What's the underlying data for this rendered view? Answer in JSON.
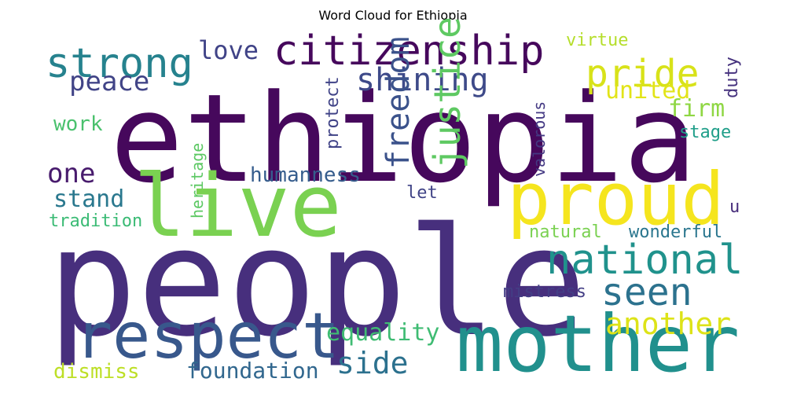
{
  "chart_data": {
    "type": "wordcloud",
    "title": "Word Cloud for Ethiopia",
    "words": [
      {
        "text": "ethiopia",
        "color": "#46085c"
      },
      {
        "text": "people",
        "color": "#472f7d"
      },
      {
        "text": "live",
        "color": "#7ad151"
      },
      {
        "text": "mother",
        "color": "#21908d"
      },
      {
        "text": "proud",
        "color": "#f5e51e"
      },
      {
        "text": "respect",
        "color": "#38588c"
      },
      {
        "text": "citizenship",
        "color": "#46085c"
      },
      {
        "text": "national",
        "color": "#20928c"
      },
      {
        "text": "strong",
        "color": "#26828e"
      },
      {
        "text": "pride",
        "color": "#d8e219"
      },
      {
        "text": "seen",
        "color": "#2c728e"
      },
      {
        "text": "shining",
        "color": "#3e4a89"
      },
      {
        "text": "justice",
        "color": "#5ec962"
      },
      {
        "text": "freedom",
        "color": "#3b528b"
      },
      {
        "text": "another",
        "color": "#dde318"
      },
      {
        "text": "peace",
        "color": "#414487"
      },
      {
        "text": "side",
        "color": "#2c718e"
      },
      {
        "text": "one",
        "color": "#481b6d"
      },
      {
        "text": "love",
        "color": "#404387"
      },
      {
        "text": "equality",
        "color": "#3fbc73"
      },
      {
        "text": "united",
        "color": "#e2e418"
      },
      {
        "text": "humanness",
        "color": "#365d8d"
      },
      {
        "text": "stand",
        "color": "#2a788e"
      },
      {
        "text": "foundation",
        "color": "#31678e"
      },
      {
        "text": "firm",
        "color": "#8fd744"
      },
      {
        "text": "wonderful",
        "color": "#2a768e"
      },
      {
        "text": "work",
        "color": "#4ac16d"
      },
      {
        "text": "dismiss",
        "color": "#bddf26"
      },
      {
        "text": "mistress",
        "color": "#433e85"
      },
      {
        "text": "virtue",
        "color": "#b5de2b"
      },
      {
        "text": "tradition",
        "color": "#3bbb75"
      },
      {
        "text": "natural",
        "color": "#7ad151"
      },
      {
        "text": "let",
        "color": "#414487"
      },
      {
        "text": "stage",
        "color": "#1f9e89"
      },
      {
        "text": "duty",
        "color": "#46327e"
      },
      {
        "text": "protect",
        "color": "#404387"
      },
      {
        "text": "valorous",
        "color": "#443983"
      },
      {
        "text": "heritage",
        "color": "#5cc863"
      },
      {
        "text": "u",
        "color": "#472d7b"
      }
    ]
  }
}
